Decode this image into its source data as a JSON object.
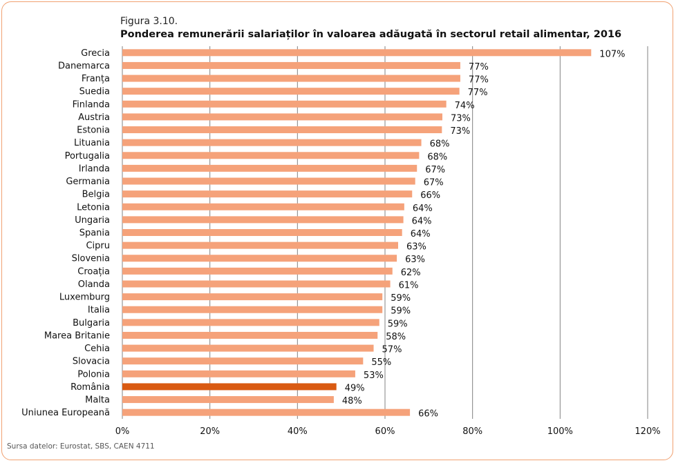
{
  "figure": {
    "label": "Figura 3.10.",
    "title": "Ponderea remunerării salariaților în valoarea adăugată în sectorul retail alimentar, 2016",
    "source": "Sursa datelor: Eurostat, SBS, CAEN 4711"
  },
  "chart_data": {
    "type": "bar",
    "orientation": "horizontal",
    "title": "Ponderea remunerării salariaților în valoarea adăugată în sectorul retail alimentar, 2016",
    "categories": [
      "Grecia",
      "Danemarca",
      "Franța",
      "Suedia",
      "Finlanda",
      "Austria",
      "Estonia",
      "Lituania",
      "Portugalia",
      "Irlanda",
      "Germania",
      "Belgia",
      "Letonia",
      "Ungaria",
      "Spania",
      "Cipru",
      "Slovenia",
      "Croația",
      "Olanda",
      "Luxemburg",
      "Italia",
      "Bulgaria",
      "Marea Britanie",
      "Cehia",
      "Slovacia",
      "Polonia",
      "România",
      "Malta",
      "Uniunea Europeană"
    ],
    "values": [
      107.1,
      77.2,
      77.2,
      77.0,
      74.0,
      73.1,
      73.0,
      68.3,
      67.8,
      67.3,
      66.9,
      66.2,
      64.4,
      64.2,
      63.9,
      63.0,
      62.7,
      61.7,
      61.2,
      59.4,
      59.4,
      58.7,
      58.3,
      57.4,
      55.0,
      53.2,
      48.9,
      48.3,
      65.7
    ],
    "value_labels": [
      "107%",
      "77%",
      "77%",
      "77%",
      "74%",
      "73%",
      "73%",
      "68%",
      "68%",
      "67%",
      "67%",
      "66%",
      "64%",
      "64%",
      "64%",
      "63%",
      "63%",
      "62%",
      "61%",
      "59%",
      "59%",
      "59%",
      "58%",
      "57%",
      "55%",
      "53%",
      "49%",
      "48%",
      "66%"
    ],
    "highlight": "România",
    "xlim": [
      0,
      120
    ],
    "xticks": [
      "0%",
      "20%",
      "40%",
      "60%",
      "80%",
      "100%",
      "120%"
    ],
    "grid": "vertical",
    "colors": {
      "bar": "#f5a27a",
      "highlight": "#d95a12",
      "grid": "#808080",
      "frame": "#f0a070"
    }
  }
}
